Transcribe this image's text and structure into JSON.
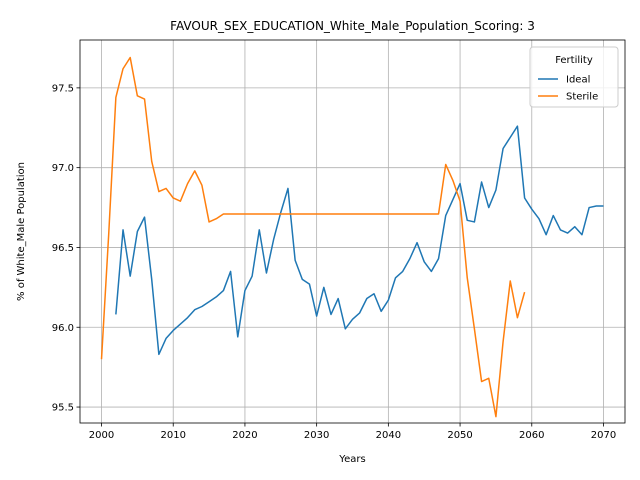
{
  "chart_data": {
    "type": "line",
    "title": "FAVOUR_SEX_EDUCATION_White_Male_Population_Scoring: 3",
    "xlabel": "Years",
    "ylabel": "% of White_Male Population",
    "xlim": [
      1997,
      2073
    ],
    "ylim": [
      95.4,
      97.8
    ],
    "xticks": [
      2000,
      2010,
      2020,
      2030,
      2040,
      2050,
      2060,
      2070
    ],
    "yticks": [
      95.5,
      96.0,
      96.5,
      97.0,
      97.5
    ],
    "ytick_labels": [
      "95.5",
      "96.0",
      "96.5",
      "97.0",
      "97.5"
    ],
    "grid": true,
    "legend": {
      "title": "Fertility",
      "placement": "top-right"
    },
    "series": [
      {
        "name": "Ideal",
        "color": "#1f77b4",
        "x": [
          2002,
          2003,
          2004,
          2005,
          2006,
          2007,
          2008,
          2009,
          2010,
          2011,
          2012,
          2013,
          2014,
          2015,
          2016,
          2017,
          2018,
          2019,
          2020,
          2021,
          2022,
          2023,
          2024,
          2025,
          2026,
          2027,
          2028,
          2029,
          2030,
          2031,
          2032,
          2033,
          2034,
          2035,
          2036,
          2037,
          2038,
          2039,
          2040,
          2041,
          2042,
          2043,
          2044,
          2045,
          2046,
          2047,
          2048,
          2049,
          2050,
          2051,
          2052,
          2053,
          2054,
          2055,
          2056,
          2057,
          2058,
          2059,
          2060,
          2061,
          2062,
          2063,
          2064,
          2065,
          2066,
          2067,
          2068,
          2069,
          2070
        ],
        "y": [
          96.08,
          96.61,
          96.32,
          96.6,
          96.69,
          96.3,
          95.83,
          95.93,
          95.98,
          96.02,
          96.06,
          96.11,
          96.13,
          96.16,
          96.19,
          96.23,
          96.35,
          95.94,
          96.23,
          96.32,
          96.61,
          96.34,
          96.55,
          96.72,
          96.87,
          96.42,
          96.3,
          96.27,
          96.07,
          96.25,
          96.08,
          96.18,
          95.99,
          96.05,
          96.09,
          96.18,
          96.21,
          96.1,
          96.17,
          96.31,
          96.35,
          96.43,
          96.53,
          96.41,
          96.35,
          96.43,
          96.7,
          96.8,
          96.9,
          96.67,
          96.66,
          96.91,
          96.75,
          96.86,
          97.12,
          97.19,
          97.26,
          96.81,
          96.74,
          96.68,
          96.58,
          96.7,
          96.61,
          96.59,
          96.63,
          96.58,
          96.75,
          96.76,
          96.76
        ]
      },
      {
        "name": "Sterile",
        "color": "#ff7f0e",
        "x": [
          2000,
          2001,
          2002,
          2003,
          2004,
          2005,
          2006,
          2007,
          2008,
          2009,
          2010,
          2011,
          2012,
          2013,
          2014,
          2015,
          2016,
          2017,
          2018,
          2019,
          2020,
          2021,
          2022,
          2023,
          2024,
          2025,
          2026,
          2027,
          2028,
          2029,
          2030,
          2031,
          2032,
          2033,
          2034,
          2035,
          2036,
          2037,
          2038,
          2039,
          2040,
          2041,
          2042,
          2043,
          2044,
          2045,
          2046,
          2047,
          2048,
          2049,
          2050,
          2051,
          2052,
          2053,
          2054,
          2055,
          2056,
          2057,
          2058,
          2059
        ],
        "y": [
          95.8,
          96.58,
          97.44,
          97.62,
          97.69,
          97.45,
          97.43,
          97.04,
          96.85,
          96.87,
          96.81,
          96.79,
          96.9,
          96.98,
          96.89,
          96.66,
          96.68,
          96.71,
          96.71,
          96.71,
          96.71,
          96.71,
          96.71,
          96.71,
          96.71,
          96.71,
          96.71,
          96.71,
          96.71,
          96.71,
          96.71,
          96.71,
          96.71,
          96.71,
          96.71,
          96.71,
          96.71,
          96.71,
          96.71,
          96.71,
          96.71,
          96.71,
          96.71,
          96.71,
          96.71,
          96.71,
          96.71,
          96.71,
          97.02,
          96.92,
          96.79,
          96.31,
          95.99,
          95.66,
          95.68,
          95.44,
          95.91,
          96.29,
          96.06,
          96.22
        ]
      }
    ]
  }
}
